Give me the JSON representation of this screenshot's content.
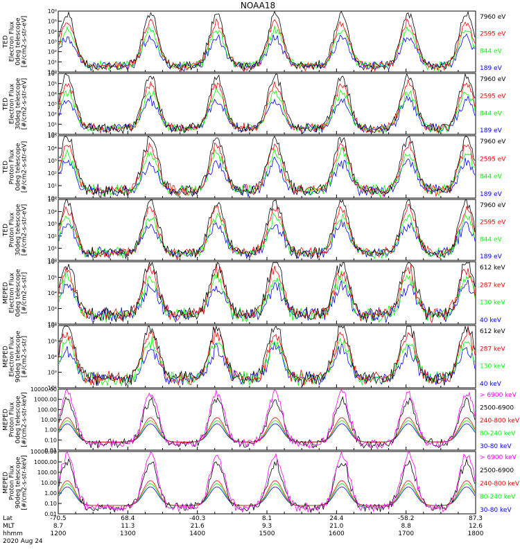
{
  "title": "NOAA18",
  "date_label": "2020 Aug 24",
  "axis_row_labels": [
    "Lat",
    "MLT",
    "hhmm"
  ],
  "x_ticks": [
    {
      "hhmm": "1200",
      "lat": "-70.5",
      "mlt": "8.7"
    },
    {
      "hhmm": "1300",
      "lat": "68.4",
      "mlt": "11.3"
    },
    {
      "hhmm": "1400",
      "lat": "-40.3",
      "mlt": "21.6"
    },
    {
      "hhmm": "1500",
      "lat": "8.1",
      "mlt": "9.3"
    },
    {
      "hhmm": "1600",
      "lat": "24.4",
      "mlt": "21.0"
    },
    {
      "hhmm": "1700",
      "lat": "-58.2",
      "mlt": "8.8"
    },
    {
      "hhmm": "1800",
      "lat": "87.3",
      "mlt": "12.6"
    }
  ],
  "colors": {
    "blue": "#0000ff",
    "red": "#ff0000",
    "green": "#00ff00",
    "black": "#000000",
    "magenta": "#ff00ff"
  },
  "chart_data": [
    {
      "type": "line",
      "ylabel": [
        "TED",
        "Electron Flux",
        "0deg telescope",
        "[#/cm2-s-str-eV]"
      ],
      "yticks": [
        "10⁰",
        "10¹",
        "10²",
        "10³",
        "10⁴",
        "10⁵",
        "10⁶"
      ],
      "ylim": [
        0,
        6
      ],
      "series": [
        {
          "name": "7960 eV",
          "color": "#000000"
        },
        {
          "name": "2595 eV",
          "color": "#ff0000"
        },
        {
          "name": "844 eV",
          "color": "#00ff00"
        },
        {
          "name": "189 eV",
          "color": "#0000ff"
        }
      ]
    },
    {
      "type": "line",
      "ylabel": [
        "TED",
        "Electron Flux",
        "30deg telescope",
        "[#/cm2-s-str-eV]"
      ],
      "yticks": [
        "10⁰",
        "10¹",
        "10²",
        "10³",
        "10⁴",
        "10⁵",
        "10⁶"
      ],
      "ylim": [
        0,
        6
      ],
      "series": [
        {
          "name": "7960 eV",
          "color": "#000000"
        },
        {
          "name": "2595 eV",
          "color": "#ff0000"
        },
        {
          "name": "844 eV",
          "color": "#00ff00"
        },
        {
          "name": "189 eV",
          "color": "#0000ff"
        }
      ]
    },
    {
      "type": "line",
      "ylabel": [
        "TED",
        "Proton Flux",
        "0deg telescope",
        "[#/cm2-s-str-eV]"
      ],
      "yticks": [
        "10⁰",
        "10¹",
        "10²",
        "10³",
        "10⁴",
        "10⁵"
      ],
      "ylim": [
        0,
        5
      ],
      "series": [
        {
          "name": "7960 eV",
          "color": "#000000"
        },
        {
          "name": "2595 eV",
          "color": "#ff0000"
        },
        {
          "name": "844 eV",
          "color": "#00ff00"
        },
        {
          "name": "189 eV",
          "color": "#0000ff"
        }
      ]
    },
    {
      "type": "line",
      "ylabel": [
        "TED",
        "Proton Flux",
        "30deg telescope",
        "[#/cm2-s-str-eV]"
      ],
      "yticks": [
        "10⁰",
        "10¹",
        "10²",
        "10³",
        "10⁴",
        "10⁵"
      ],
      "ylim": [
        0,
        5
      ],
      "series": [
        {
          "name": "7960 eV",
          "color": "#000000"
        },
        {
          "name": "2595 eV",
          "color": "#ff0000"
        },
        {
          "name": "844 eV",
          "color": "#00ff00"
        },
        {
          "name": "189 eV",
          "color": "#0000ff"
        }
      ]
    },
    {
      "type": "line",
      "ylabel": [
        "MEPED",
        "Electron Flux",
        "0deg telescope",
        "[#/cm2-s-str]"
      ],
      "yticks": [
        "10²",
        "10³",
        "10⁴",
        "10⁵",
        "10⁶"
      ],
      "ylim": [
        2,
        6
      ],
      "series": [
        {
          "name": "612 keV",
          "color": "#000000"
        },
        {
          "name": "287 keV",
          "color": "#ff0000"
        },
        {
          "name": "130 keV",
          "color": "#00ff00"
        },
        {
          "name": "40 keV",
          "color": "#0000ff"
        }
      ]
    },
    {
      "type": "line",
      "ylabel": [
        "MEPED",
        "Electron Flux",
        "90deg telescope",
        "[#/cm2-s-str]"
      ],
      "yticks": [
        "10²",
        "10³",
        "10⁴",
        "10⁵",
        "10⁶"
      ],
      "ylim": [
        2,
        6
      ],
      "series": [
        {
          "name": "612 keV",
          "color": "#000000"
        },
        {
          "name": "287 keV",
          "color": "#ff0000"
        },
        {
          "name": "130 keV",
          "color": "#00ff00"
        },
        {
          "name": "40 keV",
          "color": "#0000ff"
        }
      ]
    },
    {
      "type": "line",
      "ylabel": [
        "MEPED",
        "Proton Flux",
        "0deg telescope",
        "[#/cm2-s-str-keV]"
      ],
      "yticks": [
        "0.01",
        "0.10",
        "1.00",
        "10.00",
        "100.00",
        "1000.00",
        "10000.00"
      ],
      "ylim": [
        -2,
        4
      ],
      "series": [
        {
          "name": "> 6900 keV",
          "color": "#ff00ff"
        },
        {
          "name": "2500-6900",
          "color": "#000000"
        },
        {
          "name": "240-800 keV",
          "color": "#ff0000"
        },
        {
          "name": "80-240 keV",
          "color": "#00ff00"
        },
        {
          "name": "30-80 keV",
          "color": "#0000ff"
        }
      ]
    },
    {
      "type": "line",
      "ylabel": [
        "MEPED",
        "Proton Flux",
        "90deg telescope",
        "[#/cm2-s-str-keV]"
      ],
      "yticks": [
        "0.01",
        "0.10",
        "1.00",
        "10.00",
        "100.00",
        "1000.00",
        "10000.00"
      ],
      "ylim": [
        -2,
        4
      ],
      "series": [
        {
          "name": "> 6900 keV",
          "color": "#ff00ff"
        },
        {
          "name": "2500-6900",
          "color": "#000000"
        },
        {
          "name": "240-800 keV",
          "color": "#ff0000"
        },
        {
          "name": "80-240 keV",
          "color": "#00ff00"
        },
        {
          "name": "30-80 keV",
          "color": "#0000ff"
        }
      ]
    }
  ]
}
